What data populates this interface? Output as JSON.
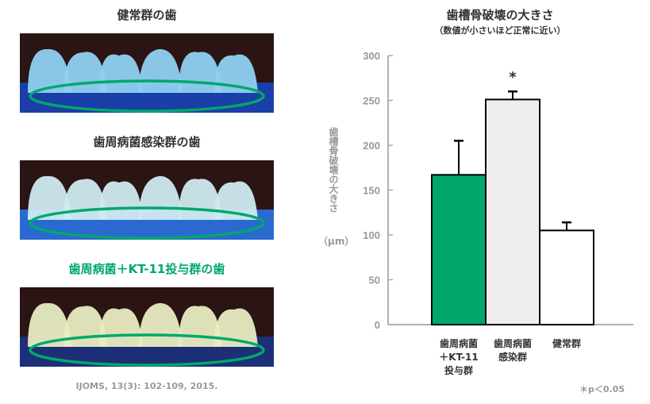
{
  "photos": [
    {
      "title": "健常群の歯",
      "title_color": "#333333",
      "tooth_color": "#8fd0f0",
      "gum_color": "#1a3fa8"
    },
    {
      "title": "歯周病菌感染群の歯",
      "title_color": "#333333",
      "tooth_color": "#cfeaf0",
      "gum_color": "#2a6ad0"
    },
    {
      "title": "歯周病菌＋KT-11投与群の歯",
      "title_color": "#00a86b",
      "tooth_color": "#e8ecc0",
      "gum_color": "#1c2f78"
    }
  ],
  "citation": "IJOMS, 13(3): 102-109, 2015.",
  "chart_data": {
    "type": "bar",
    "title": "歯槽骨破壊の大きさ",
    "subtitle": "（数値が小さいほど正常に近い）",
    "ylabel": "歯槽骨破壊の大きさ",
    "yunit": "（μm）",
    "ylim": [
      0,
      300
    ],
    "yticks": [
      0,
      50,
      100,
      150,
      200,
      250,
      300
    ],
    "categories": [
      "歯周病菌\n＋KT-11\n投与群",
      "歯周病菌\n感染群",
      "健常群"
    ],
    "values": [
      167,
      251,
      105
    ],
    "error_upper": [
      205,
      260,
      114
    ],
    "colors": [
      "#00a86b",
      "#eeeeee",
      "#ffffff"
    ],
    "significance_marks": [
      "",
      "*",
      ""
    ],
    "note": "＊p＜0.05",
    "grid": false
  },
  "ellipse_color": "#00a86b"
}
